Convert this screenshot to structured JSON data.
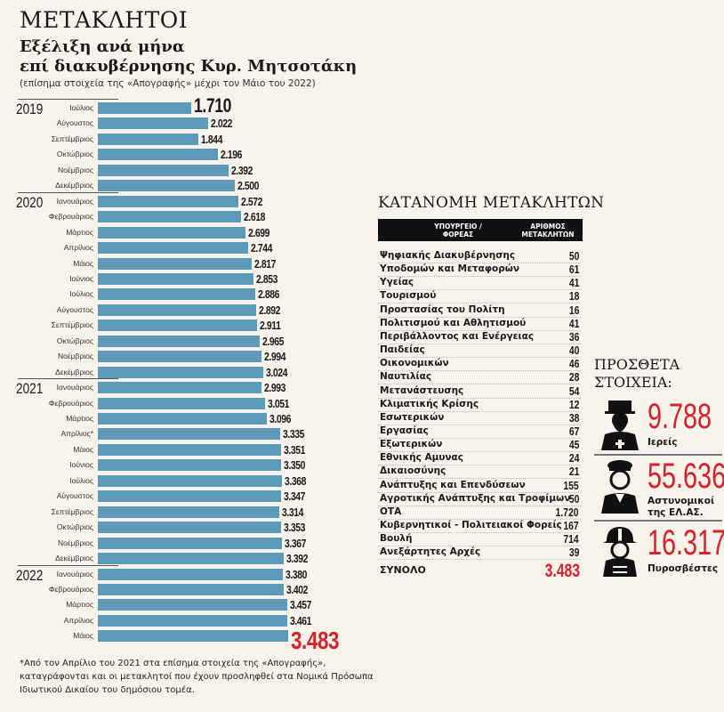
{
  "header": {
    "title": "ΜΕΤΑΚΛΗΤΟΙ",
    "subtitle_line1": "Εξέλιξη ανά μήνα",
    "subtitle_line2": "επί διακυβέρνησης Κυρ. Μητσοτάκη",
    "note": "(επίσημα στοιχεία της «Απογραφής» μέχρι τον Μάιο του 2022)"
  },
  "chart_data": {
    "type": "bar",
    "orientation": "horizontal",
    "bar_color": "#5b9ab8",
    "highlight_color": "#d2232a",
    "years": [
      {
        "label": "2019",
        "start_index": 0
      },
      {
        "label": "2020",
        "start_index": 6
      },
      {
        "label": "2021",
        "start_index": 18
      },
      {
        "label": "2022",
        "start_index": 30
      }
    ],
    "categories": [
      "Ιούλιος",
      "Αύγουστος",
      "Σεπτέμβριος",
      "Οκτώβριος",
      "Νοέμβριος",
      "Δεκέμβριος",
      "Ιανουάριος",
      "Φεβρουάριος",
      "Μάρτιος",
      "Απρίλιος",
      "Μάιος",
      "Ιούνιος",
      "Ιούλιος",
      "Αύγουστος",
      "Σεπτέμβριος",
      "Οκτώβριος",
      "Νοέμβριος",
      "Δεκέμβριος",
      "Ιανουάριος",
      "Φεβρουάριος",
      "Μάρτιος",
      "Απρίλιος*",
      "Μάιος",
      "Ιούνιος",
      "Ιούλιος",
      "Αύγουστος",
      "Σεπτέμβριος",
      "Οκτώβριος",
      "Νοέμβριος",
      "Δεκέμβριος",
      "Ιανουάριος",
      "Φεβρουάριος",
      "Μάρτιος",
      "Απρίλιος",
      "Μάιος"
    ],
    "values": [
      1710,
      2022,
      1844,
      2196,
      2392,
      2500,
      2572,
      2618,
      2699,
      2744,
      2817,
      2853,
      2886,
      2892,
      2911,
      2965,
      2994,
      3024,
      2993,
      3051,
      3096,
      3335,
      3351,
      3350,
      3368,
      3347,
      3314,
      3353,
      3367,
      3392,
      3380,
      3402,
      3457,
      3461,
      3483
    ],
    "labels": [
      "1.710",
      "2.022",
      "1.844",
      "2.196",
      "2.392",
      "2.500",
      "2.572",
      "2.618",
      "2.699",
      "2.744",
      "2.817",
      "2.853",
      "2.886",
      "2.892",
      "2.911",
      "2.965",
      "2.994",
      "3.024",
      "2.993",
      "3.051",
      "3.096",
      "3.335",
      "3.351",
      "3.350",
      "3.368",
      "3.347",
      "3.314",
      "3.353",
      "3.367",
      "3.392",
      "3.380",
      "3.402",
      "3.457",
      "3.461",
      "3.483"
    ]
  },
  "footnote": "*Από τον Απρίλιο του 2021 στα επίσημα στοιχεία της «Απογραφής», καταγράφονται και οι μετακλητοί που έχουν προσληφθεί στα Νομικά Πρόσωπα Ιδιωτικού Δικαίου του δημόσιου τομέα.",
  "table": {
    "title": "ΚΑΤΑΝΟΜΗ ΜΕΤΑΚΛΗΤΩΝ",
    "col1_line1": "ΥΠΟΥΡΓΕΙΟ /",
    "col1_line2": "ΦΟΡΕΑΣ",
    "col2_line1": "ΑΡΙΘΜΟΣ",
    "col2_line2": "ΜΕΤΑΚΛΗΤΩΝ",
    "rows": [
      {
        "name": "Ψηφιακής Διακυβέρνησης",
        "value": "50"
      },
      {
        "name": "Υποδομών και Μεταφορών",
        "value": "61"
      },
      {
        "name": "Υγείας",
        "value": "41"
      },
      {
        "name": "Τουρισμού",
        "value": "18"
      },
      {
        "name": "Προστασίας του Πολίτη",
        "value": "16"
      },
      {
        "name": "Πολιτισμού και Αθλητισμού",
        "value": "41"
      },
      {
        "name": "Περιβάλλοντος και Ενέργειας",
        "value": "36"
      },
      {
        "name": "Παιδείας",
        "value": "40"
      },
      {
        "name": "Οικονομικών",
        "value": "46"
      },
      {
        "name": "Ναυτιλίας",
        "value": "28"
      },
      {
        "name": "Μετανάστευσης",
        "value": "54"
      },
      {
        "name": "Κλιματικής Κρίσης",
        "value": "12"
      },
      {
        "name": "Εσωτερικών",
        "value": "38"
      },
      {
        "name": "Εργασίας",
        "value": "67"
      },
      {
        "name": "Εξωτερικών",
        "value": "45"
      },
      {
        "name": "Εθνικής Αμυνας",
        "value": "24"
      },
      {
        "name": "Δικαιοσύνης",
        "value": "21"
      },
      {
        "name": "Ανάπτυξης και Επενδύσεων",
        "value": "155"
      },
      {
        "name": "Αγροτικής Ανάπτυξης και Τροφίμων",
        "value": "50"
      },
      {
        "name": "ΟΤΑ",
        "value": "1.720"
      },
      {
        "name": "Κυβερνητικοί - Πολιτειακοί Φορείς",
        "value": "167"
      },
      {
        "name": "Βουλή",
        "value": "714"
      },
      {
        "name": "Ανεξάρτητες Αρχές",
        "value": "39"
      }
    ],
    "total_label": "ΣΥΝΟΛΟ",
    "total_value": "3.483"
  },
  "extra": {
    "title_line1": "ΠΡΟΣΘΕΤΑ",
    "title_line2": "ΣΤΟΙΧΕΙΑ:",
    "stats": [
      {
        "icon": "priest-icon",
        "value": "9.788",
        "label1": "Ιερείς",
        "label2": ""
      },
      {
        "icon": "police-officer-icon",
        "value": "55.636",
        "label1": "Αστυνομικοί",
        "label2": "της ΕΛ.ΑΣ."
      },
      {
        "icon": "firefighter-icon",
        "value": "16.317",
        "label1": "Πυροσβέστες",
        "label2": ""
      }
    ]
  }
}
